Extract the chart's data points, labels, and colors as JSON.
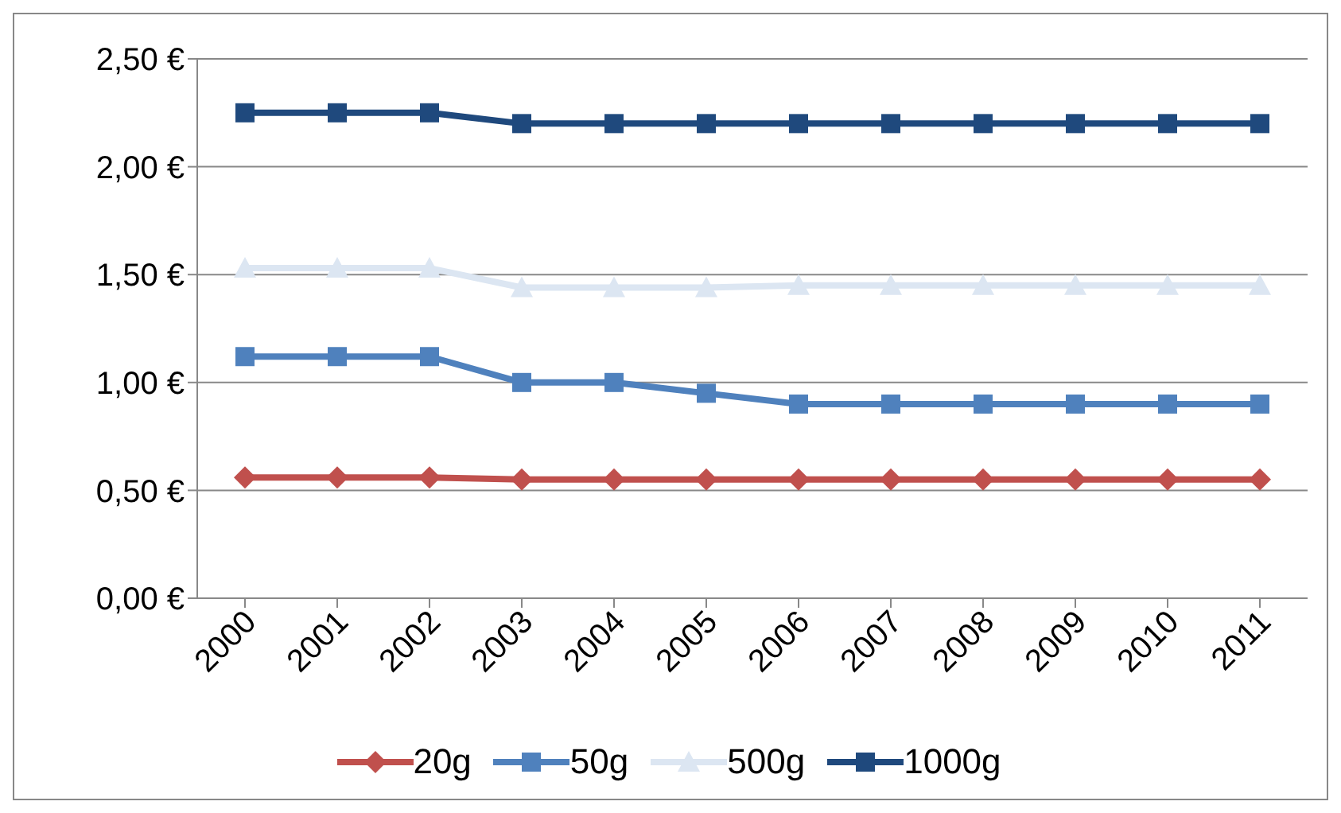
{
  "chart_data": {
    "type": "line",
    "categories": [
      "2000",
      "2001",
      "2002",
      "2003",
      "2004",
      "2005",
      "2006",
      "2007",
      "2008",
      "2009",
      "2010",
      "2011"
    ],
    "series": [
      {
        "name": "20g",
        "color": "#c0504d",
        "marker": "diamond",
        "values": [
          0.56,
          0.56,
          0.56,
          0.55,
          0.55,
          0.55,
          0.55,
          0.55,
          0.55,
          0.55,
          0.55,
          0.55
        ]
      },
      {
        "name": "50g",
        "color": "#4f81bd",
        "marker": "square",
        "values": [
          1.12,
          1.12,
          1.12,
          1.0,
          1.0,
          0.95,
          0.9,
          0.9,
          0.9,
          0.9,
          0.9,
          0.9
        ]
      },
      {
        "name": "500g",
        "color": "#dce6f2",
        "marker": "triangle",
        "values": [
          1.53,
          1.53,
          1.53,
          1.44,
          1.44,
          1.44,
          1.45,
          1.45,
          1.45,
          1.45,
          1.45,
          1.45
        ]
      },
      {
        "name": "1000g",
        "color": "#1f497d",
        "marker": "square",
        "values": [
          2.25,
          2.25,
          2.25,
          2.2,
          2.2,
          2.2,
          2.2,
          2.2,
          2.2,
          2.2,
          2.2,
          2.2
        ]
      }
    ],
    "ylim": [
      0,
      2.5
    ],
    "yticks": [
      {
        "value": 0,
        "label": "0,00 €"
      },
      {
        "value": 0.5,
        "label": "0,50 €"
      },
      {
        "value": 1,
        "label": "1,00 €"
      },
      {
        "value": 1.5,
        "label": "1,50 €"
      },
      {
        "value": 2,
        "label": "2,00 €"
      },
      {
        "value": 2.5,
        "label": "2,50 €"
      }
    ],
    "grid": "y",
    "legend": "bottom",
    "line_style": "solid"
  }
}
